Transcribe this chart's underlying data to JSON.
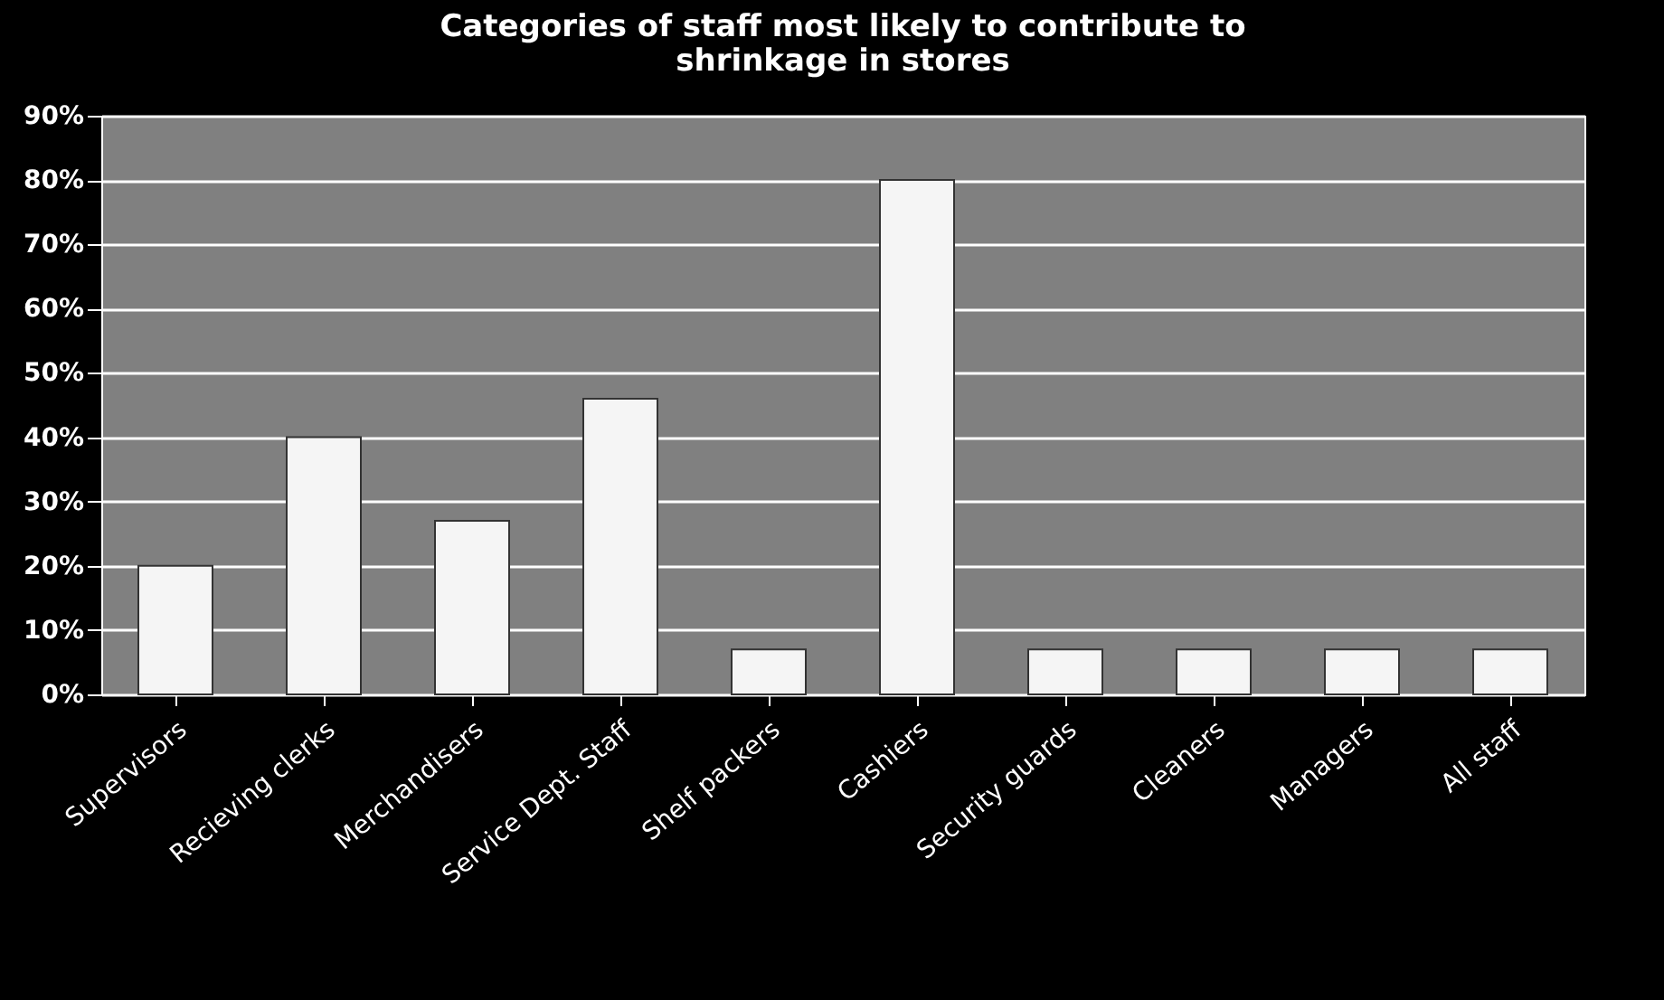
{
  "chart_data": {
    "type": "bar",
    "title": [
      "Categories of staff most likely to contribute to",
      "shrinkage in stores"
    ],
    "categories": [
      "Supervisors",
      "Recieving clerks",
      "Merchandisers",
      "Service Dept. Staff",
      "Shelf packers",
      "Cashiers",
      "Security guards",
      "Cleaners",
      "Managers",
      "All staff"
    ],
    "values": [
      20,
      40,
      27,
      46,
      7,
      80,
      7,
      7,
      7,
      7
    ],
    "color": "#f5f5f5",
    "ylim": [
      0,
      90
    ],
    "yticks": [
      {
        "value": 0,
        "label": "0%"
      },
      {
        "value": 10,
        "label": "10%"
      },
      {
        "value": 20,
        "label": "20%"
      },
      {
        "value": 30,
        "label": "30%"
      },
      {
        "value": 40,
        "label": "40%"
      },
      {
        "value": 50,
        "label": "50%"
      },
      {
        "value": 60,
        "label": "60%"
      },
      {
        "value": 70,
        "label": "70%"
      },
      {
        "value": 80,
        "label": "80%"
      },
      {
        "value": 90,
        "label": "90%"
      }
    ],
    "grid": "y"
  }
}
